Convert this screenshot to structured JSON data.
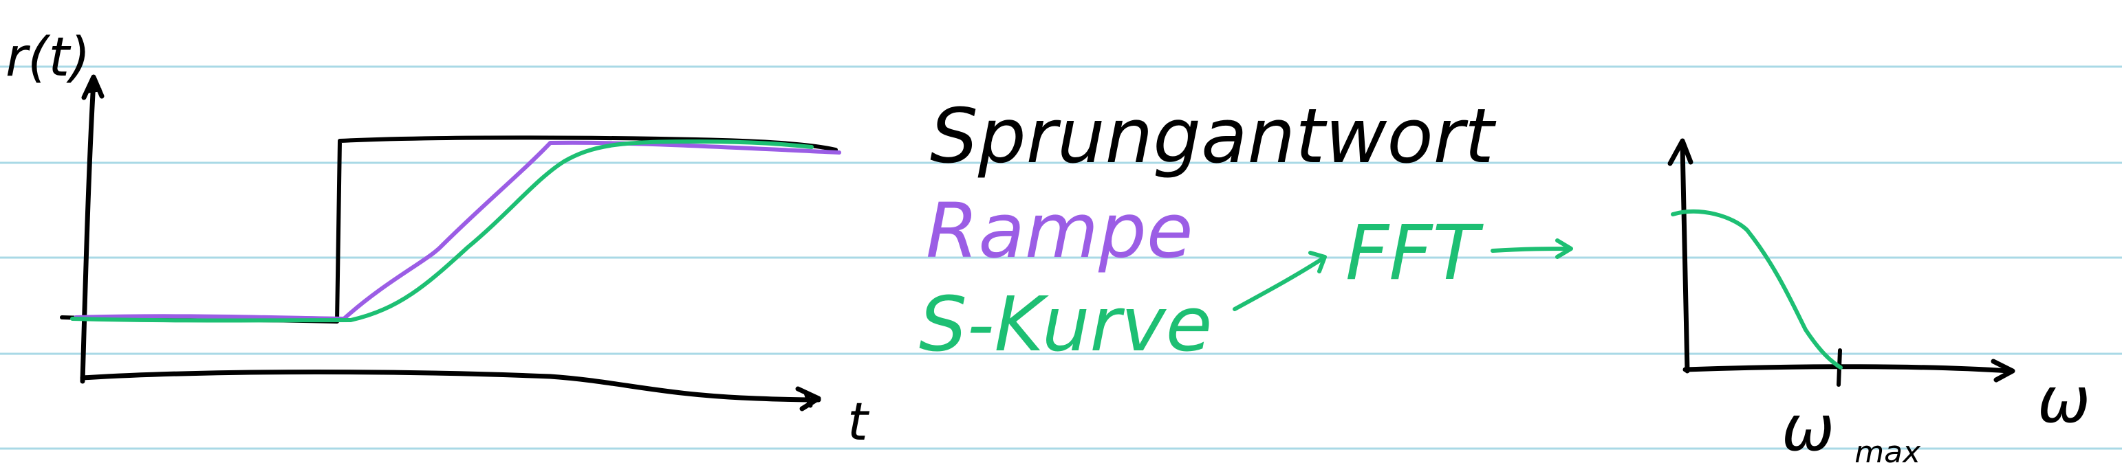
{
  "colors": {
    "ink": "#000000",
    "ramp": "#9b5de5",
    "s_curve": "#1dbf73",
    "ruled_lines": "#a9d9e6",
    "paper": "#ffffff"
  },
  "left_plot": {
    "y_axis_label": "r(t)",
    "x_axis_label": "t"
  },
  "legend": {
    "step_response": "Sprungantwort",
    "ramp": "Rampe",
    "s_curve": "S-Kurve"
  },
  "flow": {
    "fft_label": "FFT"
  },
  "right_plot": {
    "x_axis_label": "ω",
    "marker_label_main": "ω",
    "marker_label_sub": "max"
  }
}
